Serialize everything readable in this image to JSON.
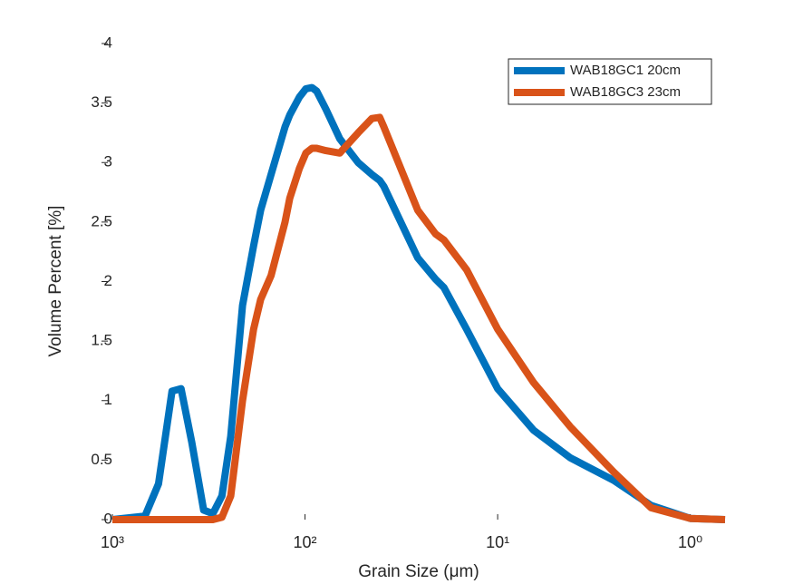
{
  "chart_data": {
    "type": "line",
    "xlabel": "Grain Size (μm)",
    "ylabel": "Volume Percent [%]",
    "x": [
      1000,
      677,
      576,
      490,
      440,
      387,
      336,
      301,
      270,
      243,
      211,
      185,
      170,
      150,
      127,
      120,
      107,
      99,
      92,
      87,
      78,
      66,
      53,
      45,
      41,
      39,
      26,
      21,
      19,
      14.5,
      10,
      6.5,
      4.2,
      2.5,
      1.6,
      1.0,
      0.66
    ],
    "series": [
      {
        "name": "WAB18GC1 20cm",
        "color": "#0072bd",
        "values": [
          0,
          0.03,
          0.3,
          1.08,
          1.1,
          0.65,
          0.08,
          0.05,
          0.2,
          0.7,
          1.8,
          2.3,
          2.6,
          2.9,
          3.3,
          3.4,
          3.55,
          3.62,
          3.63,
          3.6,
          3.45,
          3.2,
          3.0,
          2.9,
          2.85,
          2.8,
          2.2,
          2.02,
          1.95,
          1.6,
          1.1,
          0.75,
          0.52,
          0.33,
          0.12,
          0.01,
          0
        ]
      },
      {
        "name": "WAB18GC3 23cm",
        "color": "#d95319",
        "values": [
          0,
          0,
          0,
          0,
          0,
          0,
          0,
          0,
          0.02,
          0.2,
          1.0,
          1.6,
          1.85,
          2.05,
          2.5,
          2.7,
          2.95,
          3.08,
          3.12,
          3.12,
          3.1,
          3.08,
          3.25,
          3.37,
          3.38,
          3.3,
          2.6,
          2.4,
          2.35,
          2.1,
          1.6,
          1.15,
          0.78,
          0.4,
          0.1,
          0.01,
          0
        ]
      }
    ],
    "xscale": "log",
    "xreversed": true,
    "xlim": [
      1000,
      0.66
    ],
    "xticks": [
      {
        "value": 1000,
        "label": "10³"
      },
      {
        "value": 100,
        "label": "10²"
      },
      {
        "value": 10,
        "label": "10¹"
      },
      {
        "value": 1,
        "label": "10⁰"
      }
    ],
    "ylim": [
      0,
      4
    ],
    "yticks": [
      0,
      0.5,
      1,
      1.5,
      2,
      2.5,
      3,
      3.5,
      4
    ],
    "legend": "northeast"
  }
}
